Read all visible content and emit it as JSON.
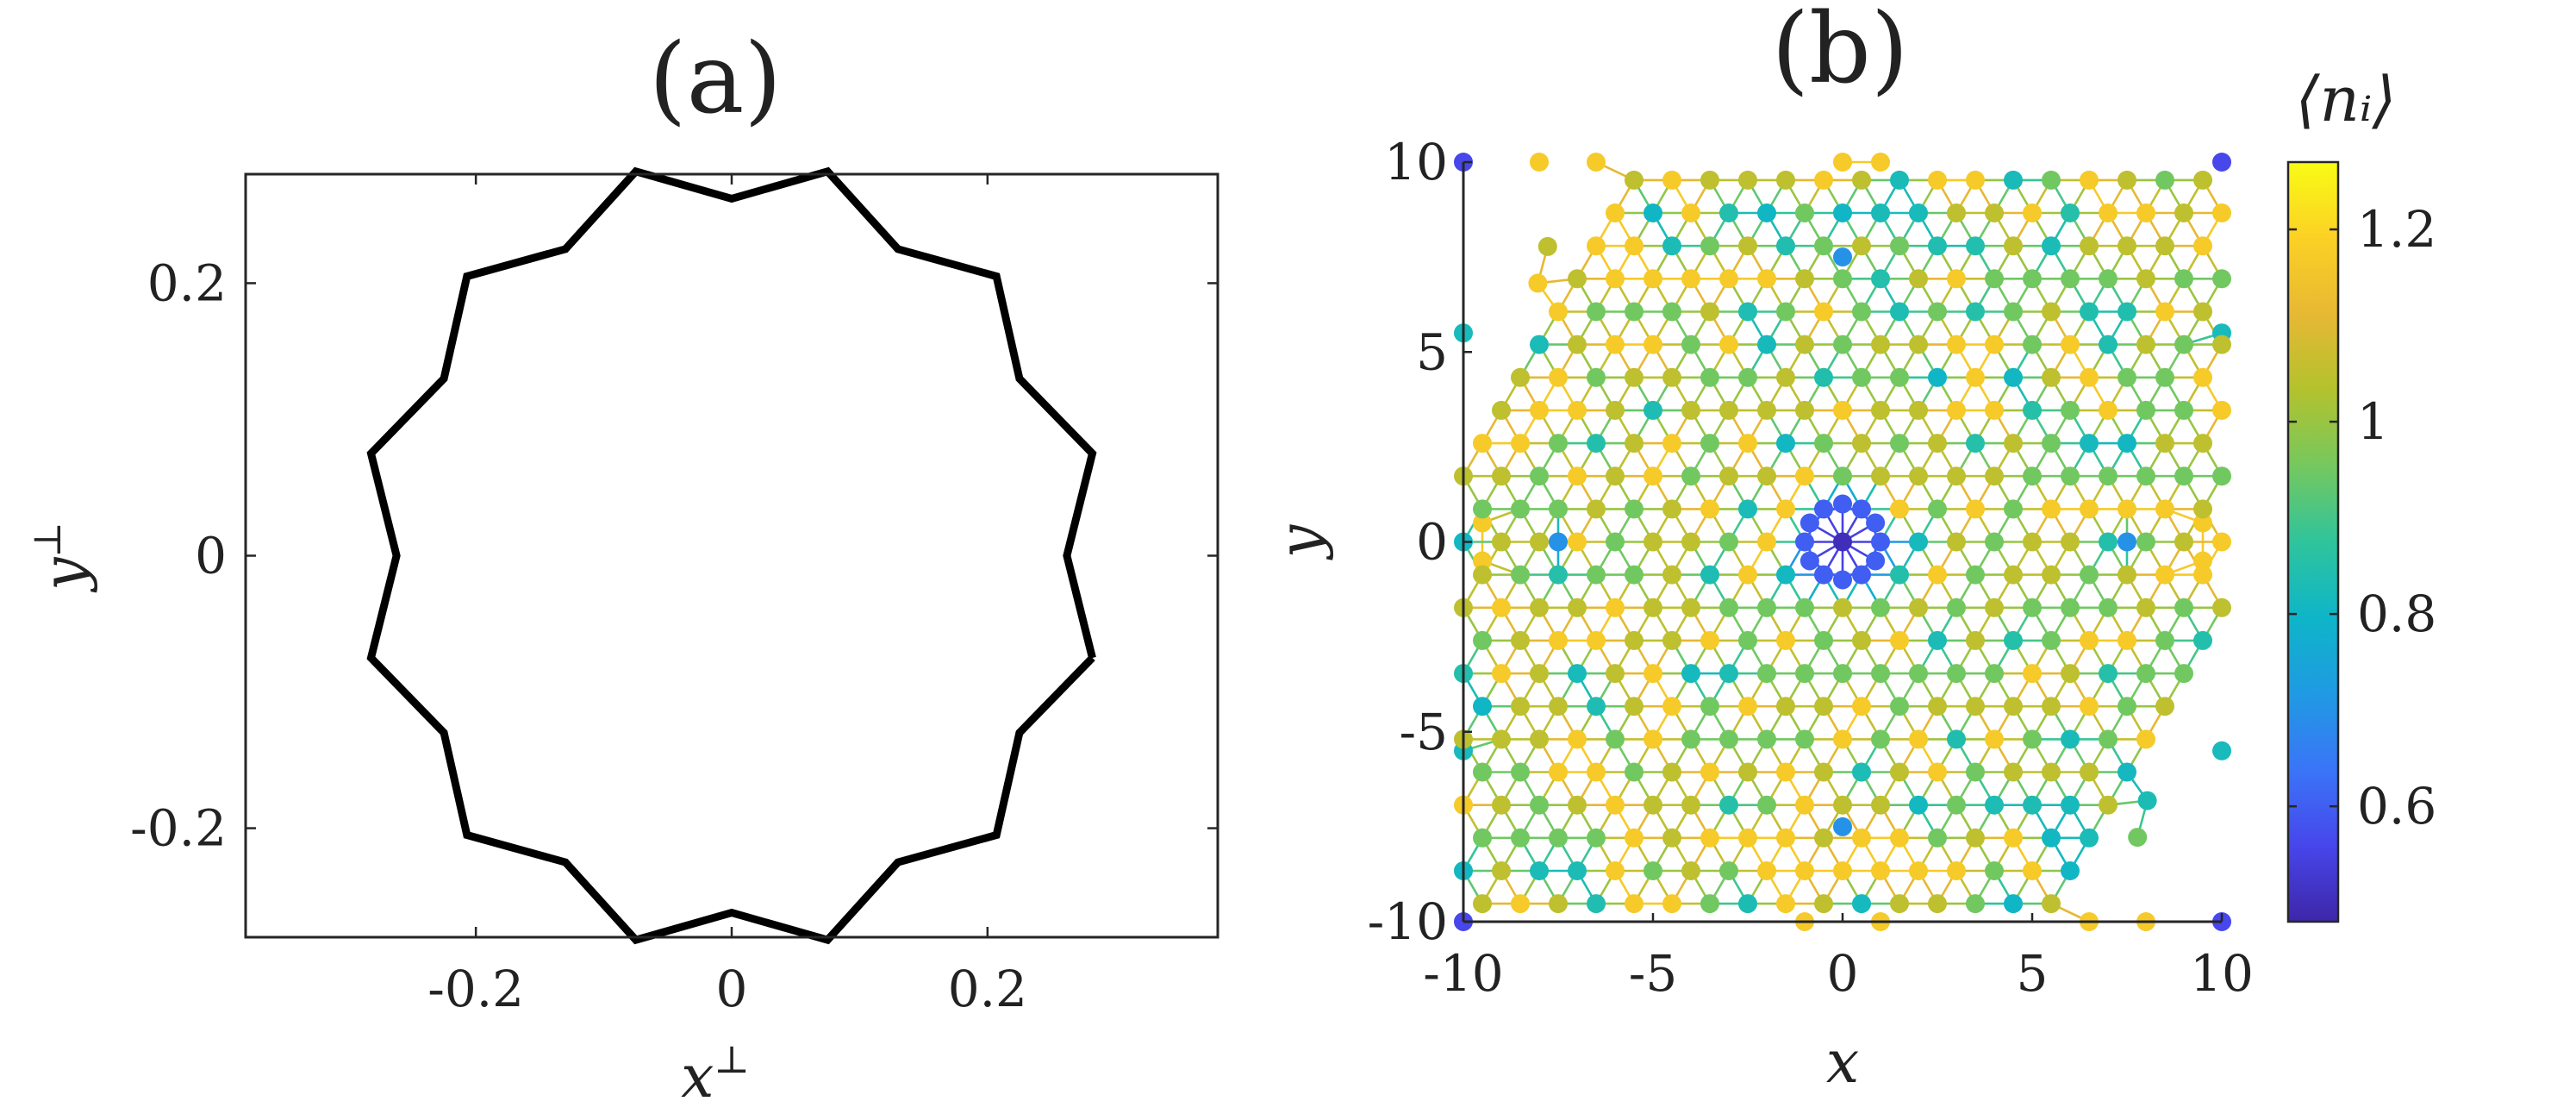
{
  "chart_data": [
    {
      "type": "line",
      "panel_label": "(a)",
      "xlabel": "x",
      "xlabel_sup": "⊥",
      "ylabel": "y",
      "ylabel_sup": "⊥",
      "xlim": [
        -0.38,
        0.38
      ],
      "ylim": [
        -0.28,
        0.28
      ],
      "xticks": [
        -0.2,
        0,
        0.2
      ],
      "xtick_labels": [
        "-0.2",
        "0",
        "0.2"
      ],
      "yticks": [
        -0.2,
        0,
        0.2
      ],
      "ytick_labels": [
        "-0.2",
        "0",
        "0.2"
      ],
      "line_color": "#000000",
      "series": [
        {
          "points": [
            [
              0.282,
              -0.075
            ],
            [
              0.262,
              0.0
            ],
            [
              0.282,
              0.075
            ],
            [
              0.225,
              0.13
            ],
            [
              0.207,
              0.205
            ],
            [
              0.13,
              0.225
            ],
            [
              0.075,
              0.282
            ],
            [
              0.0,
              0.262
            ],
            [
              -0.075,
              0.282
            ],
            [
              -0.13,
              0.225
            ],
            [
              -0.207,
              0.205
            ],
            [
              -0.225,
              0.13
            ],
            [
              -0.282,
              0.075
            ],
            [
              -0.262,
              0.0
            ],
            [
              -0.282,
              -0.075
            ],
            [
              -0.225,
              -0.13
            ],
            [
              -0.207,
              -0.205
            ],
            [
              -0.13,
              -0.225
            ],
            [
              -0.075,
              -0.282
            ],
            [
              0.0,
              -0.262
            ],
            [
              0.075,
              -0.282
            ],
            [
              0.13,
              -0.225
            ],
            [
              0.207,
              -0.205
            ],
            [
              0.225,
              -0.13
            ],
            [
              0.282,
              -0.075
            ]
          ]
        }
      ]
    },
    {
      "type": "scatter",
      "panel_label": "(b)",
      "xlabel": "x",
      "ylabel": "y",
      "xlim": [
        -10,
        10
      ],
      "ylim": [
        -10,
        10
      ],
      "xticks": [
        -10,
        -5,
        0,
        5,
        10
      ],
      "xtick_labels": [
        "-10",
        "-5",
        "0",
        "5",
        "10"
      ],
      "yticks": [
        -10,
        -5,
        0,
        5,
        10
      ],
      "ytick_labels": [
        "-10",
        "-5",
        "0",
        "5",
        "10"
      ],
      "lattice": "dodecagonal quasicrystal (12-fold symmetric), nearest-neighbour bonds drawn",
      "colorbar": {
        "title": "⟨n_i⟩",
        "title_display": "⟨nᵢ⟩",
        "range": [
          0.48,
          1.27
        ],
        "ticks": [
          0.6,
          0.8,
          1,
          1.2
        ],
        "tick_labels": [
          "0.6",
          "0.8",
          "1",
          "1.2"
        ],
        "colormap": "parula",
        "colormap_stops": [
          "#3e26a8",
          "#4746eb",
          "#3a75f7",
          "#209ae3",
          "#0eb5c8",
          "#2fc49c",
          "#75c85e",
          "#b3c22e",
          "#e7b833",
          "#fbd125",
          "#f9fb15"
        ]
      },
      "series": [
        {
          "name": "",
          "points": [
            [
              0,
              0,
              0.5
            ],
            [
              1.0,
              0,
              0.6
            ],
            [
              0.866,
              0.5,
              0.6
            ],
            [
              0.5,
              0.866,
              0.6
            ],
            [
              0,
              1.0,
              0.6
            ],
            [
              -0.5,
              0.866,
              0.6
            ],
            [
              -0.866,
              0.5,
              0.6
            ],
            [
              -1.0,
              0,
              0.6
            ],
            [
              -0.866,
              -0.5,
              0.6
            ],
            [
              -0.5,
              -0.866,
              0.6
            ],
            [
              0,
              -1.0,
              0.6
            ],
            [
              0.5,
              -0.866,
              0.6
            ],
            [
              0.866,
              -0.5,
              0.6
            ],
            [
              -10,
              10,
              0.56
            ],
            [
              10,
              10,
              0.56
            ],
            [
              -10,
              -10,
              0.56
            ],
            [
              10,
              -10,
              0.56
            ],
            [
              0,
              7.5,
              0.7
            ],
            [
              0,
              -7.5,
              0.7
            ],
            [
              7.5,
              0,
              0.7
            ],
            [
              -7.5,
              0,
              0.7
            ],
            [
              -10,
              5.5,
              0.82
            ],
            [
              10,
              5.5,
              0.82
            ],
            [
              -10,
              -5.5,
              0.82
            ],
            [
              10,
              -5.5,
              0.82
            ],
            [
              -8,
              10,
              1.17
            ],
            [
              -6.5,
              10,
              1.17
            ],
            [
              0,
              10,
              1.17
            ],
            [
              1,
              10,
              1.17
            ],
            [
              -1,
              -10,
              1.17
            ],
            [
              1,
              -10,
              1.17
            ],
            [
              6.5,
              -10,
              1.17
            ],
            [
              8,
              -10,
              1.17
            ],
            [
              -9.5,
              0.5,
              1.17
            ],
            [
              9.5,
              -0.5,
              1.17
            ],
            [
              -9.5,
              -0.5,
              1.17
            ],
            [
              9.5,
              0.5,
              1.17
            ]
          ]
        }
      ]
    }
  ]
}
